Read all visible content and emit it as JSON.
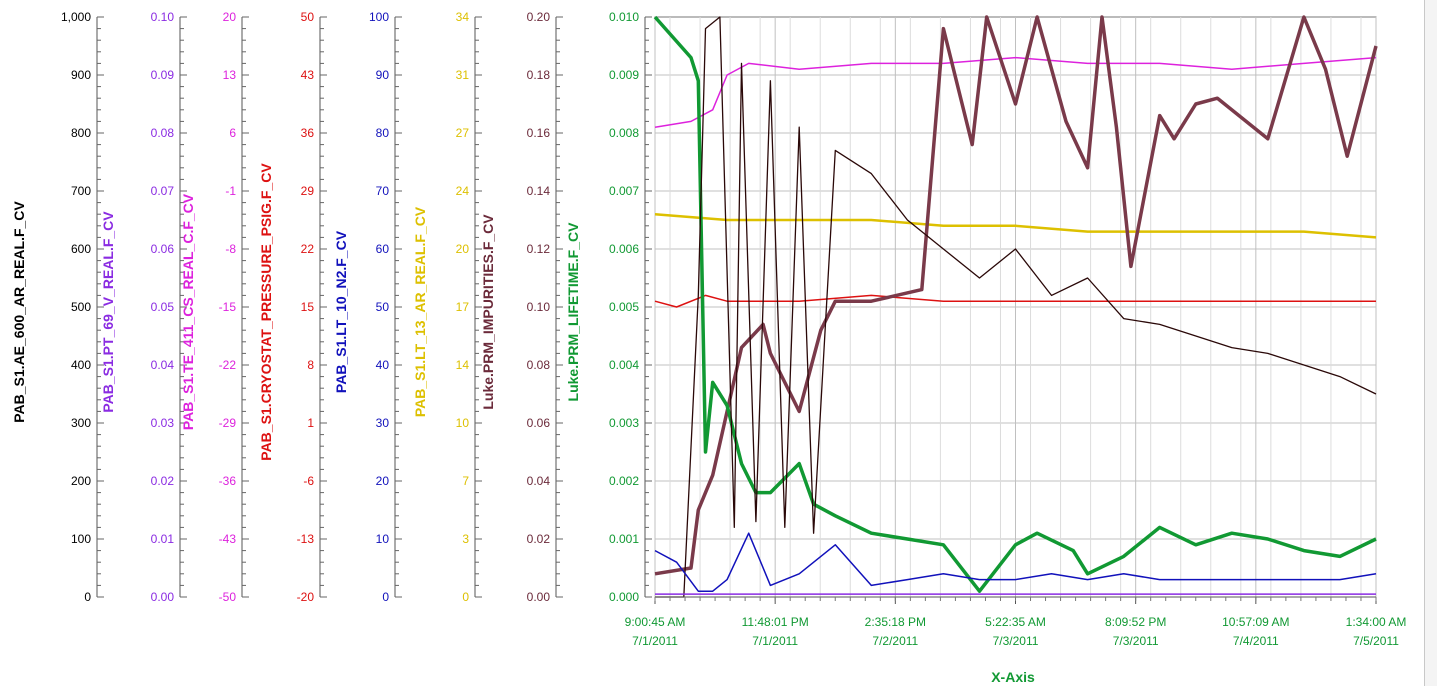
{
  "chart_data": {
    "type": "line",
    "xlabel": "X-Axis",
    "x_ticks": [
      {
        "time": "9:00:45 AM",
        "date": "7/1/2011"
      },
      {
        "time": "11:48:01 PM",
        "date": "7/1/2011"
      },
      {
        "time": "2:35:18 PM",
        "date": "7/2/2011"
      },
      {
        "time": "5:22:35 AM",
        "date": "7/3/2011"
      },
      {
        "time": "8:09:52 PM",
        "date": "7/3/2011"
      },
      {
        "time": "10:57:09 AM",
        "date": "7/4/2011"
      },
      {
        "time": "1:34:00 AM",
        "date": "7/5/2011"
      }
    ],
    "xlim": [
      "2011-07-01T09:00:45",
      "2011-07-05T01:34:00"
    ],
    "grid": true,
    "axes": [
      {
        "name": "PAB_S1.AE_600_AR_REAL.F_CV",
        "color": "#000000",
        "ylim": [
          0,
          1000
        ],
        "ticks": [
          "0",
          "100",
          "200",
          "300",
          "400",
          "500",
          "600",
          "700",
          "800",
          "900",
          "1,000"
        ]
      },
      {
        "name": "PAB_S1.PT_69_V_REAL.F_CV",
        "color": "#8a2be2",
        "ylim": [
          0,
          0.1
        ],
        "ticks": [
          "0.00",
          "0.01",
          "0.02",
          "0.03",
          "0.04",
          "0.05",
          "0.06",
          "0.07",
          "0.08",
          "0.09",
          "0.10"
        ]
      },
      {
        "name": "PAB_S1.TE_411_CS_REAL_C.F_CV",
        "color": "#dd22dd",
        "ylim": [
          -50,
          20
        ],
        "ticks": [
          "-50",
          "-43",
          "-36",
          "-29",
          "-22",
          "-15",
          "-8",
          "-1",
          "6",
          "13",
          "20"
        ]
      },
      {
        "name": "PAB_S1.CRYOSTAT_PRESSURE_PSIG.F_CV",
        "color": "#dd1111",
        "ylim": [
          -20,
          50
        ],
        "ticks": [
          "-20",
          "-13",
          "-6",
          "1",
          "8",
          "15",
          "22",
          "29",
          "36",
          "43",
          "50"
        ]
      },
      {
        "name": "PAB_S1.LT_10_N2.F_CV",
        "color": "#1111bb",
        "ylim": [
          0,
          100
        ],
        "ticks": [
          "0",
          "10",
          "20",
          "30",
          "40",
          "50",
          "60",
          "70",
          "80",
          "90",
          "100"
        ]
      },
      {
        "name": "PAB_S1.LT_13_AR_REAL.F_CV",
        "color": "#ddc000",
        "ylim": [
          0,
          34
        ],
        "ticks": [
          "0",
          "3",
          "7",
          "10",
          "14",
          "17",
          "20",
          "24",
          "27",
          "31",
          "34"
        ]
      },
      {
        "name": "Luke.PRM_IMPURITIES.F_CV",
        "color": "#6b2a3a",
        "ylim": [
          0,
          0.2
        ],
        "ticks": [
          "0.00",
          "0.02",
          "0.04",
          "0.06",
          "0.08",
          "0.10",
          "0.12",
          "0.14",
          "0.16",
          "0.18",
          "0.20"
        ]
      },
      {
        "name": "Luke.PRM_LIFETIME.F_CV",
        "color": "#119933",
        "ylim": [
          0,
          0.01
        ],
        "ticks": [
          "0.000",
          "0.001",
          "0.002",
          "0.003",
          "0.004",
          "0.005",
          "0.006",
          "0.007",
          "0.008",
          "0.009",
          "0.010"
        ]
      }
    ],
    "series": [
      {
        "name": "PAB_S1.TE_411_CS_REAL_C.F_CV",
        "axis": 2,
        "color": "#dd22dd",
        "width": 1.5,
        "x": [
          0,
          0.05,
          0.08,
          0.1,
          0.13,
          0.2,
          0.3,
          0.4,
          0.5,
          0.6,
          0.7,
          0.8,
          0.9,
          1.0
        ],
        "y": [
          0.0081,
          0.0082,
          0.0084,
          0.009,
          0.0092,
          0.0091,
          0.0092,
          0.0092,
          0.0093,
          0.0092,
          0.0092,
          0.0091,
          0.0092,
          0.0093
        ]
      },
      {
        "name": "PAB_S1.LT_13_AR_REAL.F_CV",
        "axis": 5,
        "color": "#ddc000",
        "width": 2.5,
        "x": [
          0,
          0.1,
          0.2,
          0.3,
          0.4,
          0.5,
          0.6,
          0.7,
          0.8,
          0.9,
          1.0
        ],
        "y": [
          0.0066,
          0.0065,
          0.0065,
          0.0065,
          0.0064,
          0.0064,
          0.0063,
          0.0063,
          0.0063,
          0.0063,
          0.0062
        ]
      },
      {
        "name": "PAB_S1.CRYOSTAT_PRESSURE_PSIG.F_CV",
        "axis": 3,
        "color": "#dd1111",
        "width": 1.5,
        "x": [
          0,
          0.03,
          0.07,
          0.1,
          0.2,
          0.3,
          0.4,
          0.5,
          0.6,
          0.7,
          0.8,
          0.9,
          1.0
        ],
        "y": [
          0.0051,
          0.005,
          0.0052,
          0.0051,
          0.0051,
          0.0052,
          0.0051,
          0.0051,
          0.0051,
          0.0051,
          0.0051,
          0.0051,
          0.0051
        ]
      },
      {
        "name": "Luke.PRM_IMPURITIES.F_CV",
        "axis": 6,
        "color": "#7a3a4a",
        "width": 3.5,
        "x": [
          0,
          0.05,
          0.06,
          0.08,
          0.1,
          0.12,
          0.15,
          0.16,
          0.2,
          0.23,
          0.25,
          0.3,
          0.37,
          0.4,
          0.44,
          0.46,
          0.5,
          0.53,
          0.57,
          0.6,
          0.62,
          0.64,
          0.66,
          0.7,
          0.72,
          0.75,
          0.78,
          0.85,
          0.9,
          0.93,
          0.96,
          1.0
        ],
        "y": [
          0.0004,
          0.0005,
          0.0015,
          0.0021,
          0.0032,
          0.0043,
          0.0047,
          0.0042,
          0.0032,
          0.0046,
          0.0051,
          0.0051,
          0.0053,
          0.0098,
          0.0078,
          0.01,
          0.0085,
          0.01,
          0.0082,
          0.0074,
          0.01,
          0.0081,
          0.0057,
          0.0083,
          0.0079,
          0.0085,
          0.0086,
          0.0079,
          0.01,
          0.0091,
          0.0076,
          0.0095
        ]
      },
      {
        "name": "Luke.PRM_LIFETIME.F_CV",
        "axis": 7,
        "color": "#119933",
        "width": 3.5,
        "x": [
          0,
          0.05,
          0.06,
          0.07,
          0.08,
          0.1,
          0.12,
          0.14,
          0.16,
          0.2,
          0.22,
          0.25,
          0.3,
          0.35,
          0.4,
          0.45,
          0.5,
          0.53,
          0.58,
          0.6,
          0.65,
          0.7,
          0.75,
          0.8,
          0.85,
          0.9,
          0.95,
          1.0
        ],
        "y": [
          0.01,
          0.0093,
          0.0089,
          0.0025,
          0.0037,
          0.0033,
          0.0023,
          0.0018,
          0.0018,
          0.0023,
          0.0016,
          0.0014,
          0.0011,
          0.001,
          0.0009,
          0.0001,
          0.0009,
          0.0011,
          0.0008,
          0.0004,
          0.0007,
          0.0012,
          0.0009,
          0.0011,
          0.001,
          0.0008,
          0.0007,
          0.001
        ]
      },
      {
        "name": "PAB_S1.AE_600_AR_REAL.F_CV",
        "axis": 0,
        "color": "#2a0808",
        "width": 1.3,
        "x": [
          0,
          0.04,
          0.06,
          0.07,
          0.09,
          0.11,
          0.12,
          0.14,
          0.16,
          0.18,
          0.2,
          0.22,
          0.25,
          0.3,
          0.35,
          0.4,
          0.45,
          0.5,
          0.55,
          0.6,
          0.65,
          0.7,
          0.75,
          0.8,
          0.85,
          0.9,
          0.95,
          1.0
        ],
        "y": [
          0.0,
          0.0,
          0.0052,
          0.0098,
          0.01,
          0.0012,
          0.0092,
          0.0013,
          0.0089,
          0.0012,
          0.0081,
          0.0011,
          0.0077,
          0.0073,
          0.0065,
          0.006,
          0.0055,
          0.006,
          0.0052,
          0.0055,
          0.0048,
          0.0047,
          0.0045,
          0.0043,
          0.0042,
          0.004,
          0.0038,
          0.0035
        ]
      },
      {
        "name": "PAB_S1.LT_10_N2.F_CV",
        "axis": 4,
        "color": "#1111bb",
        "width": 1.5,
        "x": [
          0,
          0.03,
          0.06,
          0.08,
          0.1,
          0.13,
          0.16,
          0.2,
          0.25,
          0.3,
          0.35,
          0.4,
          0.45,
          0.5,
          0.55,
          0.6,
          0.65,
          0.7,
          0.75,
          0.8,
          0.85,
          0.9,
          0.95,
          1.0
        ],
        "y": [
          0.0008,
          0.0006,
          0.0001,
          0.0001,
          0.0003,
          0.0011,
          0.0002,
          0.0004,
          0.0009,
          0.0002,
          0.0003,
          0.0004,
          0.0003,
          0.0003,
          0.0004,
          0.0003,
          0.0004,
          0.0003,
          0.0003,
          0.0003,
          0.0003,
          0.0003,
          0.0003,
          0.0004
        ]
      },
      {
        "name": "PAB_S1.PT_69_V_REAL.F_CV",
        "axis": 1,
        "color": "#8a2be2",
        "width": 1.5,
        "x": [
          0,
          1.0
        ],
        "y": [
          5e-05,
          5e-05
        ]
      }
    ]
  }
}
